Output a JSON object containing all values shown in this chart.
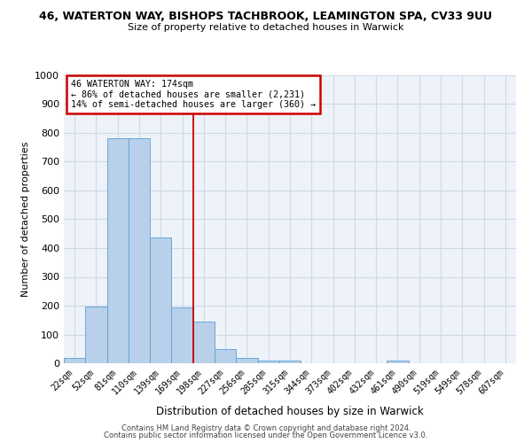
{
  "title_line1": "46, WATERTON WAY, BISHOPS TACHBROOK, LEAMINGTON SPA, CV33 9UU",
  "title_line2": "Size of property relative to detached houses in Warwick",
  "xlabel": "Distribution of detached houses by size in Warwick",
  "ylabel": "Number of detached properties",
  "bar_labels": [
    "22sqm",
    "52sqm",
    "81sqm",
    "110sqm",
    "139sqm",
    "169sqm",
    "198sqm",
    "227sqm",
    "256sqm",
    "285sqm",
    "315sqm",
    "344sqm",
    "373sqm",
    "402sqm",
    "432sqm",
    "461sqm",
    "490sqm",
    "519sqm",
    "549sqm",
    "578sqm",
    "607sqm"
  ],
  "bar_values": [
    18,
    197,
    783,
    783,
    438,
    193,
    144,
    50,
    18,
    10,
    10,
    0,
    0,
    0,
    0,
    10,
    0,
    0,
    0,
    0,
    0
  ],
  "bar_color": "#b8d0ea",
  "bar_edge_color": "#5a9fd4",
  "vline_color": "#cc0000",
  "annotation_title": "46 WATERTON WAY: 174sqm",
  "annotation_line2": "← 86% of detached houses are smaller (2,231)",
  "annotation_line3": "14% of semi-detached houses are larger (360) →",
  "annotation_box_color": "#cc0000",
  "ylim": [
    0,
    1000
  ],
  "yticks": [
    0,
    100,
    200,
    300,
    400,
    500,
    600,
    700,
    800,
    900,
    1000
  ],
  "background_color": "#eef2f9",
  "grid_color": "#d0d8e8",
  "footer_line1": "Contains HM Land Registry data © Crown copyright and database right 2024.",
  "footer_line2": "Contains public sector information licensed under the Open Government Licence v3.0."
}
